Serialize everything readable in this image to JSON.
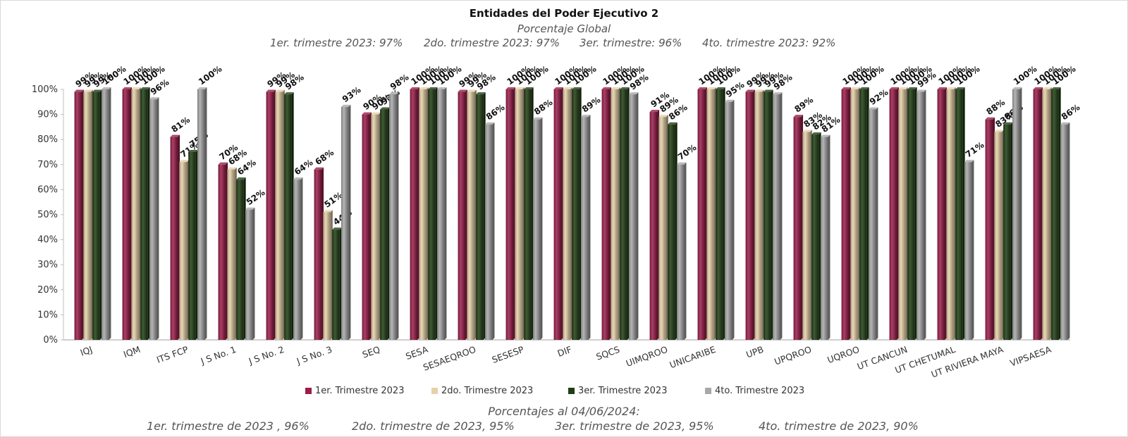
{
  "title": "Entidades del Poder Ejecutivo 2",
  "subtitle": "Porcentaje Global",
  "summary": [
    "1er. trimestre 2023: 97%",
    "2do. trimestre 2023: 97%",
    "3er. trimestre: 96%",
    "4to. trimestre 2023: 92%"
  ],
  "footer": {
    "title": "Porcentajes al 04/06/2024:",
    "items": [
      "1er. trimestre de 2023 , 96%",
      "2do. trimestre de 2023, 95%",
      "3er. trimestre de 2023, 95%",
      "4to. trimestre de 2023, 90%"
    ]
  },
  "colors": {
    "series1": "#9b1d4a",
    "series2": "#e6d1a8",
    "series3": "#1f3d14",
    "series4": "#a8a8a8"
  },
  "chart_data": {
    "type": "bar",
    "categories": [
      "IQJ",
      "IQM",
      "ITS FCP",
      "J S No. 1",
      "J S No. 2",
      "J S No. 3",
      "SEQ",
      "SESA",
      "SESAEQROO",
      "SESESP",
      "DIF",
      "SQCS",
      "UIMQROO",
      "UNICARIBE",
      "UPB",
      "UPQROO",
      "UQROO",
      "UT CANCUN",
      "UT CHETUMAL",
      "UT RIVIERA MAYA",
      "VIPSAESA"
    ],
    "series": [
      {
        "name": "1er. Trimestre 2023",
        "values": [
          99,
          100,
          81,
          70,
          99,
          68,
          90,
          100,
          99,
          100,
          100,
          100,
          91,
          100,
          99,
          89,
          100,
          100,
          100,
          88,
          100
        ]
      },
      {
        "name": "2do. Trimestre 2023",
        "values": [
          99,
          100,
          71,
          68,
          99,
          51,
          90,
          100,
          99,
          100,
          100,
          100,
          89,
          100,
          99,
          83,
          100,
          100,
          100,
          83,
          100
        ]
      },
      {
        "name": "3er. Trimestre 2023",
        "values": [
          99,
          100,
          75,
          64,
          98,
          44,
          92,
          100,
          98,
          100,
          100,
          100,
          86,
          100,
          99,
          82,
          100,
          100,
          100,
          86,
          100
        ]
      },
      {
        "name": "4to. Trimestre 2023",
        "values": [
          100,
          96,
          100,
          52,
          64,
          93,
          98,
          100,
          86,
          88,
          89,
          98,
          70,
          95,
          98,
          81,
          92,
          99,
          71,
          100,
          86
        ]
      }
    ],
    "y_ticks": [
      "0%",
      "10%",
      "20%",
      "30%",
      "40%",
      "50%",
      "60%",
      "70%",
      "80%",
      "90%",
      "100%"
    ],
    "ylim": [
      0,
      100
    ],
    "value_suffix": "%",
    "legend_position": "bottom",
    "grid": false
  }
}
